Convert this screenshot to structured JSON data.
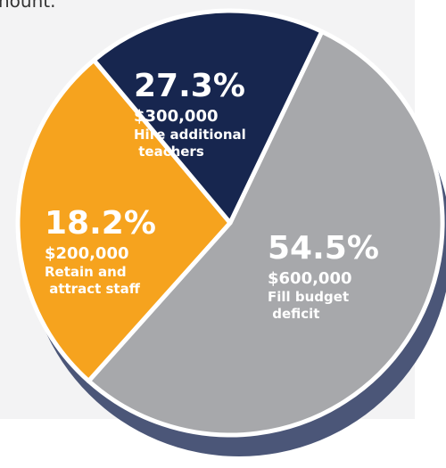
{
  "chart_data": {
    "type": "pie",
    "annotation": "nount.",
    "categories": [
      "Fill budget deficit",
      "Hire additional teachers",
      "Retain and attract staff"
    ],
    "values": [
      54.5,
      27.3,
      18.2
    ],
    "value_labels": [
      "54.5%",
      "27.3%",
      "18.2%"
    ],
    "amounts": [
      600000,
      300000,
      200000
    ],
    "amount_labels": [
      "$600,000",
      "$300,000",
      "$200,000"
    ],
    "colors": [
      "#a7a8ab",
      "#f6a31e",
      "#17264f"
    ]
  }
}
